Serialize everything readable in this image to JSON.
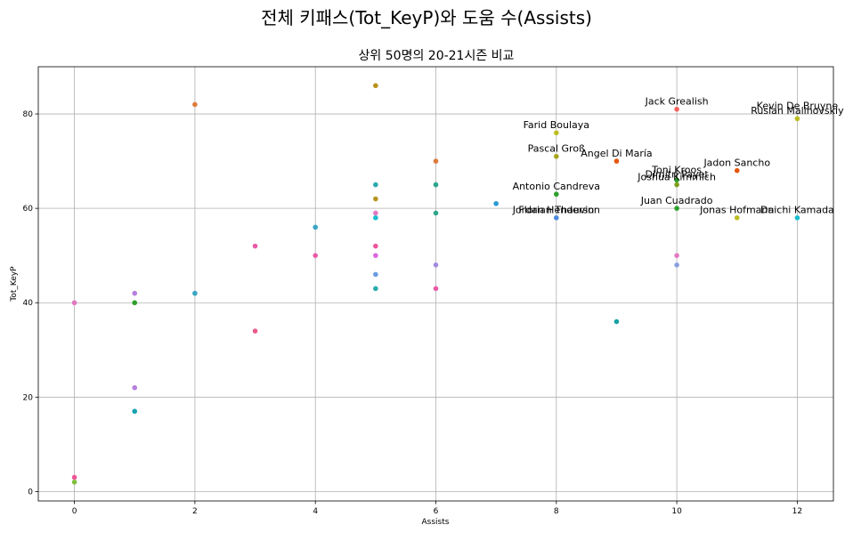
{
  "suptitle": "전체 키패스(Tot_KeyP)와 도움 수(Assists)",
  "chart_data": {
    "type": "scatter",
    "title": "상위 50명의 20-21시즌 비교",
    "xlabel": "Assists",
    "ylabel": "Tot_KeyP",
    "xlim": [
      -0.6,
      12.6
    ],
    "ylim": [
      -2,
      90
    ],
    "xticks": [
      0,
      2,
      4,
      6,
      8,
      10,
      12
    ],
    "yticks": [
      0,
      20,
      40,
      60,
      80
    ],
    "grid": true,
    "points": [
      {
        "x": 12,
        "y": 79,
        "color": "#bcbd22"
      },
      {
        "x": 12,
        "y": 58,
        "color": "#17becf"
      },
      {
        "x": 11,
        "y": 68,
        "color": "#e6550d"
      },
      {
        "x": 11,
        "y": 58,
        "color": "#bcbd22"
      },
      {
        "x": 10,
        "y": 81,
        "color": "#f5625d"
      },
      {
        "x": 10,
        "y": 66,
        "color": "#2ca02c"
      },
      {
        "x": 10,
        "y": 65,
        "color": "#7f9f1c"
      },
      {
        "x": 10,
        "y": 60,
        "color": "#2ca02c"
      },
      {
        "x": 10,
        "y": 50,
        "color": "#e377c2"
      },
      {
        "x": 10,
        "y": 48,
        "color": "#8c9ee0"
      },
      {
        "x": 9,
        "y": 70,
        "color": "#e6550d"
      },
      {
        "x": 9,
        "y": 36,
        "color": "#17a2a2"
      },
      {
        "x": 8,
        "y": 76,
        "color": "#bcbd22"
      },
      {
        "x": 8,
        "y": 71,
        "color": "#a6a61c"
      },
      {
        "x": 8,
        "y": 63,
        "color": "#2ca02c"
      },
      {
        "x": 8,
        "y": 58,
        "color": "#4c8be0"
      },
      {
        "x": 7,
        "y": 61,
        "color": "#2a9ad6"
      },
      {
        "x": 6,
        "y": 70,
        "color": "#dc7a3a"
      },
      {
        "x": 6,
        "y": 65,
        "color": "#2ca58a"
      },
      {
        "x": 6,
        "y": 59,
        "color": "#2ca58a"
      },
      {
        "x": 6,
        "y": 48,
        "color": "#a48be0"
      },
      {
        "x": 6,
        "y": 43,
        "color": "#e85aa8"
      },
      {
        "x": 5,
        "y": 86,
        "color": "#b8941e"
      },
      {
        "x": 5,
        "y": 65,
        "color": "#2aaab0"
      },
      {
        "x": 5,
        "y": 62,
        "color": "#b8941e"
      },
      {
        "x": 5,
        "y": 59,
        "color": "#e377c2"
      },
      {
        "x": 5,
        "y": 58,
        "color": "#17becf"
      },
      {
        "x": 5,
        "y": 52,
        "color": "#f0559a"
      },
      {
        "x": 5,
        "y": 50,
        "color": "#d966e0"
      },
      {
        "x": 5,
        "y": 46,
        "color": "#6c9ce0"
      },
      {
        "x": 5,
        "y": 43,
        "color": "#2aaab0"
      },
      {
        "x": 4,
        "y": 56,
        "color": "#3aa6c6"
      },
      {
        "x": 4,
        "y": 50,
        "color": "#e85aa8"
      },
      {
        "x": 3,
        "y": 52,
        "color": "#e85aa8"
      },
      {
        "x": 3,
        "y": 34,
        "color": "#e85a8a"
      },
      {
        "x": 2,
        "y": 82,
        "color": "#dc7a3a"
      },
      {
        "x": 2,
        "y": 42,
        "color": "#3aa6c6"
      },
      {
        "x": 1,
        "y": 42,
        "color": "#b57ee0"
      },
      {
        "x": 1,
        "y": 40,
        "color": "#2ca02c"
      },
      {
        "x": 1,
        "y": 22,
        "color": "#b57ee0"
      },
      {
        "x": 1,
        "y": 17,
        "color": "#17a2b0"
      },
      {
        "x": 0,
        "y": 40,
        "color": "#e377c2"
      },
      {
        "x": 0,
        "y": 3,
        "color": "#f0559a"
      },
      {
        "x": 0,
        "y": 2,
        "color": "#7fbf3c"
      }
    ],
    "annotations": [
      {
        "text": "Kevin De Bruyne",
        "x": 12,
        "y": 81
      },
      {
        "text": "Ruslan Malinovskiy",
        "x": 12,
        "y": 80
      },
      {
        "text": "Daichi Kamada",
        "x": 12,
        "y": 59
      },
      {
        "text": "Jack Grealish",
        "x": 10,
        "y": 82
      },
      {
        "text": "Jadon Sancho",
        "x": 11,
        "y": 69
      },
      {
        "text": "Toni Kroos",
        "x": 10,
        "y": 67.5
      },
      {
        "text": "Dimitri Payet",
        "x": 10,
        "y": 66.5
      },
      {
        "text": "Joshua Kimmich",
        "x": 10,
        "y": 66
      },
      {
        "text": "Juan Cuadrado",
        "x": 10,
        "y": 61
      },
      {
        "text": "Jonas Hofmann",
        "x": 11,
        "y": 59
      },
      {
        "text": "Angel Di María",
        "x": 9,
        "y": 71
      },
      {
        "text": "Farid Boulaya",
        "x": 8,
        "y": 77
      },
      {
        "text": "Pascal Groß",
        "x": 8,
        "y": 72
      },
      {
        "text": "Antonio Candreva",
        "x": 8,
        "y": 64
      },
      {
        "text": "Florian Thauvin",
        "x": 8,
        "y": 59
      },
      {
        "text": "Jordan Henderson",
        "x": 8,
        "y": 59
      }
    ]
  }
}
